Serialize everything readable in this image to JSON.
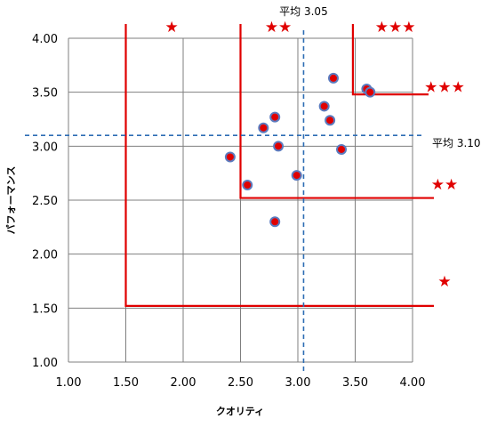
{
  "chart_data": {
    "type": "scatter",
    "title": "",
    "xlabel": "クオリティ",
    "ylabel": "パフォーマンス",
    "xlim": [
      1.0,
      4.0
    ],
    "ylim": [
      1.0,
      4.0
    ],
    "x_ticks": [
      "1.00",
      "1.50",
      "2.00",
      "2.50",
      "3.00",
      "3.50",
      "4.00"
    ],
    "y_ticks": [
      "1.00",
      "1.50",
      "2.00",
      "2.50",
      "3.00",
      "3.50",
      "4.00"
    ],
    "grid": true,
    "points": [
      {
        "x": 2.41,
        "y": 2.9
      },
      {
        "x": 2.56,
        "y": 2.64
      },
      {
        "x": 2.7,
        "y": 3.17
      },
      {
        "x": 2.8,
        "y": 3.27
      },
      {
        "x": 2.83,
        "y": 3.0
      },
      {
        "x": 2.8,
        "y": 2.3
      },
      {
        "x": 2.99,
        "y": 2.73
      },
      {
        "x": 3.23,
        "y": 3.37
      },
      {
        "x": 3.28,
        "y": 3.24
      },
      {
        "x": 3.31,
        "y": 3.63
      },
      {
        "x": 3.38,
        "y": 2.97
      },
      {
        "x": 3.6,
        "y": 3.53
      },
      {
        "x": 3.63,
        "y": 3.5
      }
    ],
    "mean_x": {
      "value": 3.05,
      "label": "平均 3.05"
    },
    "mean_y": {
      "value": 3.1,
      "label": "平均 3.10"
    },
    "zone_lines": [
      {
        "x": 1.5,
        "y": 1.52
      },
      {
        "x": 2.5,
        "y": 2.52
      },
      {
        "x": 3.48,
        "y": 3.48
      }
    ],
    "x_zone_stars": [
      {
        "x": 1.9,
        "text": "★"
      },
      {
        "x": 2.83,
        "text": "★★"
      },
      {
        "x": 3.85,
        "text": "★★★"
      }
    ],
    "y_zone_stars": [
      {
        "y": 1.75,
        "text": "★"
      },
      {
        "y": 2.65,
        "text": "★★"
      },
      {
        "y": 3.55,
        "text": "★★★"
      }
    ],
    "colors": {
      "point_fill": "#e00000",
      "point_stroke": "#5b7bbf",
      "zone_line": "#e00000",
      "mean_line": "#2e6db4",
      "grid": "#7f7f7f",
      "star": "#e00000"
    }
  }
}
